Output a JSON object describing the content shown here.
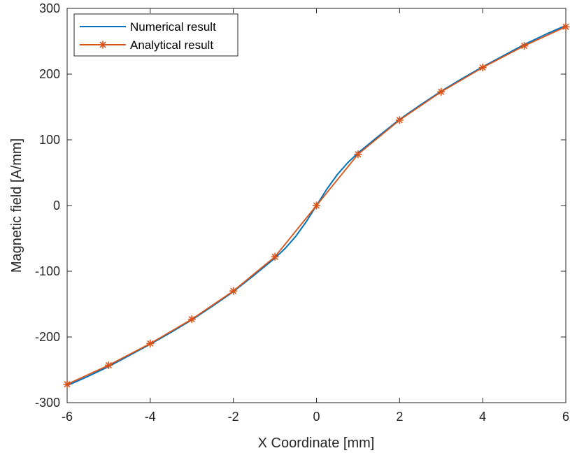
{
  "chart_data": {
    "type": "line",
    "title": "",
    "xlabel": "X Coordinate [mm]",
    "ylabel": "Magnetic field [A/mm]",
    "xlim": [
      -6,
      6
    ],
    "ylim": [
      -300,
      300
    ],
    "xticks": [
      -6,
      -4,
      -2,
      0,
      2,
      4,
      6
    ],
    "yticks": [
      -300,
      -200,
      -100,
      0,
      100,
      200,
      300
    ],
    "grid": false,
    "legend_position": "top-left",
    "series": [
      {
        "name": "Numerical result",
        "color": "#0072BD",
        "marker": "none",
        "x": [
          -6,
          -5.5,
          -5,
          -4.5,
          -4,
          -3.5,
          -3,
          -2.5,
          -2,
          -1.5,
          -1,
          -0.75,
          -0.5,
          -0.25,
          0,
          0.25,
          0.5,
          0.75,
          1,
          1.5,
          2,
          2.5,
          3,
          3.5,
          4,
          4.5,
          5,
          5.5,
          6
        ],
        "y": [
          -274,
          -260,
          -245,
          -228,
          -211,
          -193,
          -174,
          -153,
          -131,
          -106,
          -80,
          -65,
          -47,
          -25,
          0,
          25,
          47,
          65,
          80,
          106,
          131,
          153,
          174,
          193,
          211,
          228,
          245,
          260,
          274
        ]
      },
      {
        "name": "Analytical result",
        "color": "#D95319",
        "marker": "asterisk",
        "x": [
          -6,
          -5,
          -4,
          -3,
          -2,
          -1,
          0,
          1,
          2,
          3,
          4,
          5,
          6
        ],
        "y": [
          -272,
          -243,
          -210,
          -173,
          -130,
          -78,
          0,
          78,
          130,
          173,
          210,
          243,
          272
        ]
      }
    ]
  }
}
